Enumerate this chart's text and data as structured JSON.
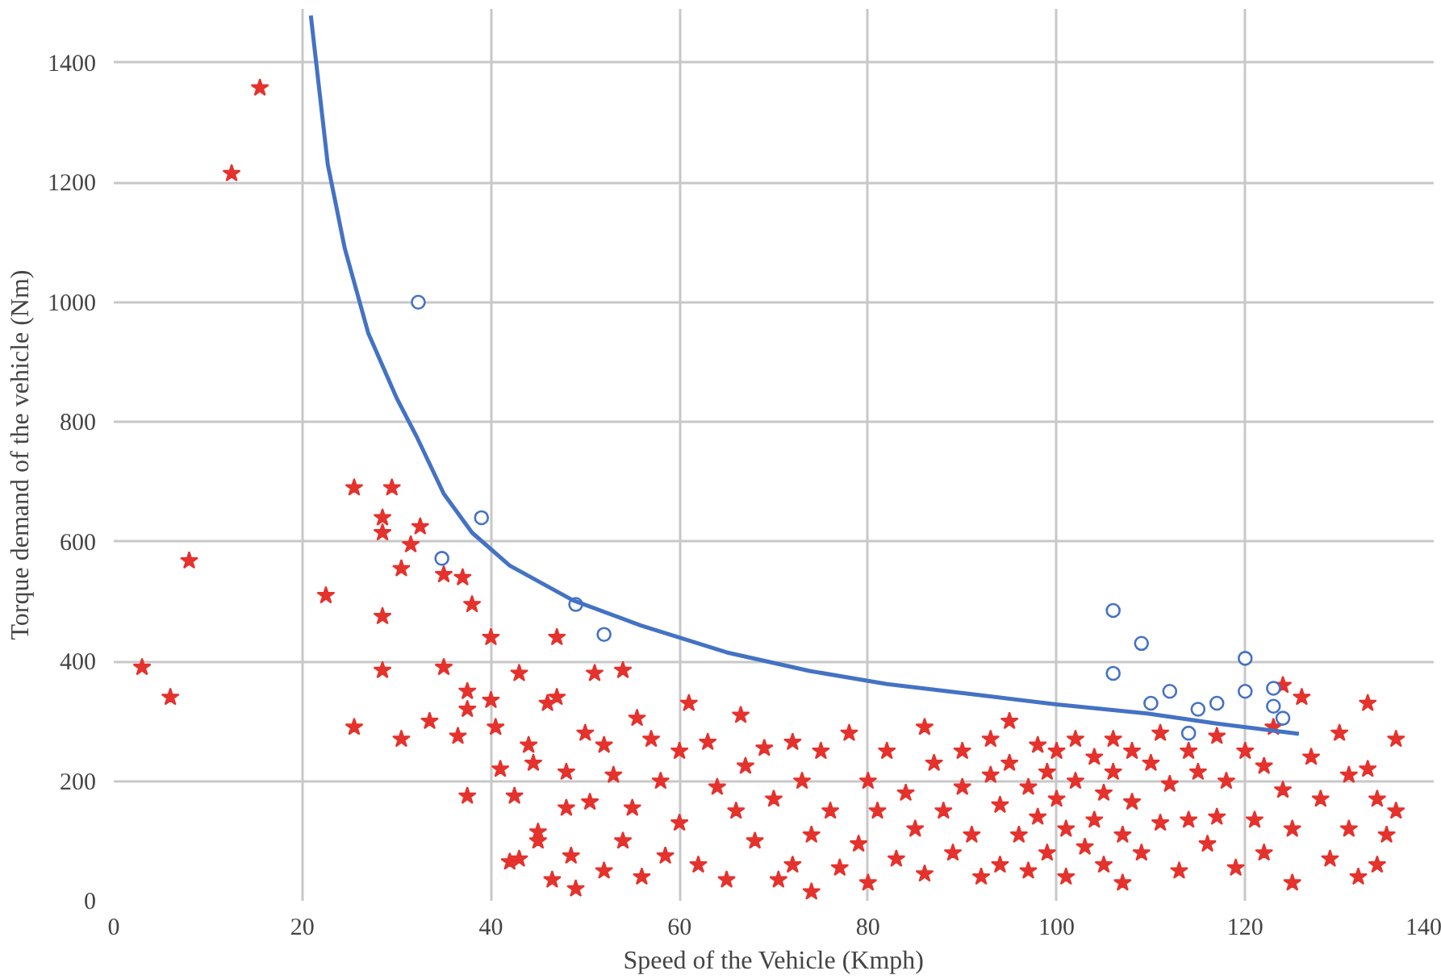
{
  "chart_data": {
    "type": "scatter",
    "xlabel": "Speed of the Vehicle (Kmph)",
    "ylabel": "Torque demand of the vehicle (Nm)",
    "xlim": [
      0,
      140
    ],
    "ylim": [
      0,
      1490
    ],
    "xticks": [
      0,
      20,
      40,
      60,
      80,
      100,
      120,
      140
    ],
    "yticks": [
      0,
      200,
      400,
      600,
      800,
      1000,
      1200,
      1400
    ],
    "grid": true,
    "series": [
      {
        "marker": "star",
        "color": "#e5322d",
        "x": [
          3,
          6,
          8,
          12.5,
          15.5,
          22.5,
          25.5,
          25.5,
          28.5,
          28.5,
          28.5,
          28.5,
          29.5,
          30.5,
          30.5,
          31.5,
          32.5,
          33.5,
          35,
          35,
          36.5,
          37,
          37.5,
          37.5,
          37.5,
          38,
          40,
          40,
          40.5,
          41,
          42,
          42.5,
          43,
          43,
          44,
          44.5,
          45,
          45,
          46,
          46.5,
          47,
          47,
          48,
          48,
          48.5,
          49,
          50,
          50.5,
          51,
          52,
          52,
          53,
          54,
          54,
          55,
          55.5,
          56,
          57,
          58,
          58.5,
          60,
          60,
          61,
          62,
          63,
          64,
          65,
          66,
          66.5,
          67,
          68,
          69,
          70,
          70.5,
          72,
          72,
          73,
          74,
          74,
          75,
          76,
          77,
          78,
          79,
          80,
          80,
          81,
          82,
          83,
          84,
          85,
          86,
          86,
          87,
          88,
          89,
          90,
          90,
          91,
          92,
          93,
          93,
          94,
          94,
          95,
          95,
          96,
          97,
          97,
          98,
          98,
          99,
          99,
          100,
          100,
          101,
          101,
          102,
          102,
          103,
          104,
          104,
          105,
          105,
          106,
          106,
          107,
          107,
          108,
          108,
          109,
          110,
          111,
          111,
          112,
          113,
          114,
          114,
          115,
          116,
          117,
          117,
          118,
          119,
          120,
          121,
          122,
          122,
          123,
          124,
          124,
          125,
          125,
          126,
          127,
          128,
          129,
          130,
          131,
          131,
          132,
          133,
          133,
          134,
          134,
          135,
          136,
          136
        ],
        "values": [
          390,
          340,
          568,
          1215,
          1358,
          510,
          690,
          290,
          640,
          615,
          475,
          385,
          690,
          555,
          270,
          595,
          625,
          300,
          545,
          390,
          275,
          540,
          350,
          320,
          175,
          495,
          440,
          335,
          290,
          220,
          65,
          175,
          380,
          70,
          260,
          230,
          115,
          100,
          330,
          35,
          440,
          340,
          215,
          155,
          75,
          20,
          280,
          165,
          380,
          260,
          50,
          210,
          385,
          100,
          155,
          305,
          40,
          270,
          200,
          75,
          250,
          130,
          330,
          60,
          265,
          190,
          35,
          150,
          310,
          225,
          100,
          255,
          170,
          35,
          265,
          60,
          200,
          110,
          15,
          250,
          150,
          55,
          280,
          95,
          200,
          30,
          150,
          250,
          70,
          180,
          120,
          290,
          45,
          230,
          150,
          80,
          250,
          190,
          110,
          40,
          210,
          270,
          160,
          60,
          300,
          230,
          110,
          190,
          50,
          260,
          140,
          215,
          80,
          250,
          170,
          40,
          120,
          270,
          200,
          90,
          240,
          135,
          60,
          180,
          270,
          215,
          110,
          30,
          250,
          165,
          80,
          230,
          280,
          130,
          195,
          50,
          250,
          135,
          215,
          95,
          275,
          140,
          200,
          55,
          250,
          135,
          225,
          80,
          290,
          360,
          185,
          30,
          120,
          340,
          240,
          170,
          70,
          280,
          210,
          120,
          40,
          330,
          220,
          170,
          60,
          110,
          270,
          150
        ]
      },
      {
        "marker": "circle",
        "color": "#4472c4",
        "x": [
          32.3,
          39,
          34.8,
          49,
          52,
          106,
          106,
          109,
          110,
          112,
          114,
          115,
          117,
          120,
          120,
          123,
          123,
          124
        ],
        "values": [
          1000,
          640,
          572,
          495,
          445,
          485,
          380,
          430,
          330,
          350,
          280,
          320,
          330,
          405,
          350,
          355,
          325,
          305
        ]
      },
      {
        "type": "line",
        "marker": "none",
        "color": "#4472c4",
        "x": [
          20.9,
          22.7,
          24.5,
          27,
          30,
          32.2,
          35,
          38,
          42,
          48.7,
          55.9,
          65,
          73.8,
          82,
          91.7,
          100,
          109.6,
          117,
          125.7
        ],
        "values": [
          1479,
          1230,
          1090,
          948,
          840,
          773,
          680,
          615,
          560,
          502,
          460,
          415,
          384,
          362,
          344,
          328,
          313,
          296,
          279
        ]
      }
    ]
  }
}
